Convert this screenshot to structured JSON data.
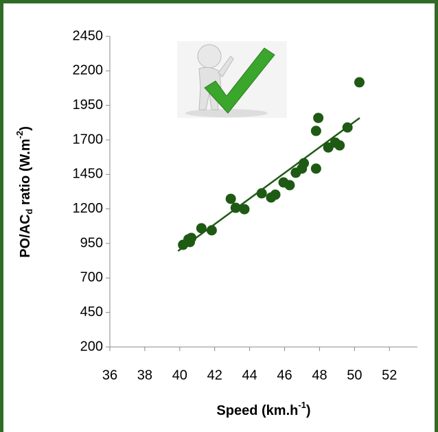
{
  "chart_data": {
    "type": "scatter",
    "x_label": [
      "Speed (km.h",
      "-1",
      ")"
    ],
    "y_label": [
      "PO/AC",
      "d",
      " ratio (W.m",
      "-2",
      ")"
    ],
    "color": "#1e5a14",
    "x": [
      40.19,
      40.5,
      40.66,
      40.58,
      41.24,
      41.83,
      42.92,
      43.2,
      43.7,
      44.69,
      45.23,
      45.47,
      45.94,
      46.29,
      46.64,
      46.99,
      47.1,
      47.8,
      47.8,
      47.93,
      48.5,
      48.9,
      49.15,
      49.6,
      50.28
    ],
    "values": [
      940,
      980,
      990,
      960,
      1060,
      1045,
      1273,
      1208,
      1198,
      1313,
      1283,
      1303,
      1392,
      1372,
      1462,
      1492,
      1531,
      1492,
      1765,
      1859,
      1645,
      1680,
      1660,
      1790,
      2117
    ],
    "trendline": {
      "x": [
        39.9,
        50.3
      ],
      "y": [
        895,
        1859
      ],
      "color": "#1e5a14"
    },
    "xlim": [
      36,
      53.6
    ],
    "xticks": [
      36,
      38,
      40,
      42,
      44,
      46,
      48,
      50,
      52
    ],
    "ylim": [
      200,
      2450
    ],
    "yticks": [
      200,
      450,
      700,
      950,
      1200,
      1450,
      1700,
      1950,
      2200,
      2450
    ]
  }
}
